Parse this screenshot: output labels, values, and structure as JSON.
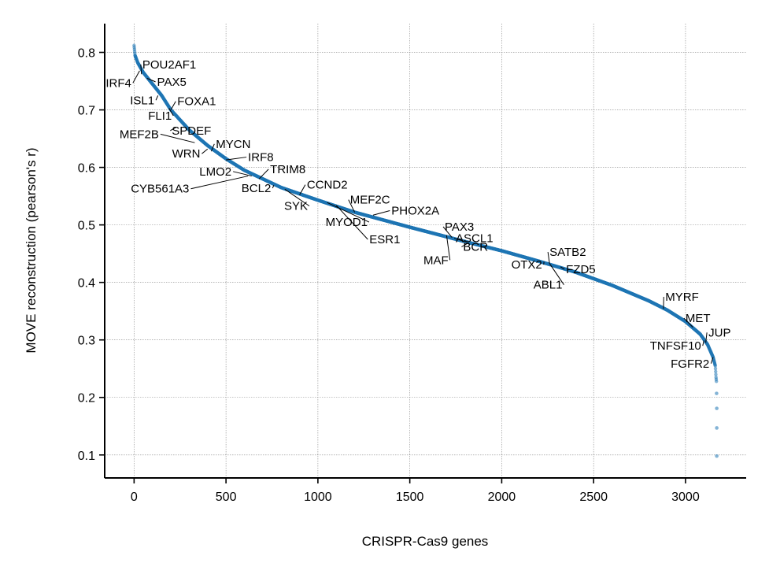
{
  "chart_data": {
    "type": "scatter",
    "title": "",
    "xlabel": "CRISPR-Cas9 genes",
    "ylabel": "MOVE reconstruction (pearson's r)",
    "xlim": [
      -160,
      3330
    ],
    "ylim": [
      0.06,
      0.85
    ],
    "xticks": [
      0,
      500,
      1000,
      1500,
      2000,
      2500,
      3000
    ],
    "yticks": [
      0.1,
      0.2,
      0.3,
      0.4,
      0.5,
      0.6,
      0.7,
      0.8
    ],
    "grid": true,
    "point_color": "#1f77b4",
    "n_points": 3170,
    "curve_anchors": [
      {
        "x": 0,
        "y": 0.812
      },
      {
        "x": 5,
        "y": 0.795
      },
      {
        "x": 20,
        "y": 0.782
      },
      {
        "x": 50,
        "y": 0.765
      },
      {
        "x": 100,
        "y": 0.745
      },
      {
        "x": 150,
        "y": 0.725
      },
      {
        "x": 200,
        "y": 0.7
      },
      {
        "x": 300,
        "y": 0.665
      },
      {
        "x": 400,
        "y": 0.638
      },
      {
        "x": 500,
        "y": 0.615
      },
      {
        "x": 600,
        "y": 0.595
      },
      {
        "x": 700,
        "y": 0.58
      },
      {
        "x": 800,
        "y": 0.565
      },
      {
        "x": 1000,
        "y": 0.543
      },
      {
        "x": 1200,
        "y": 0.522
      },
      {
        "x": 1500,
        "y": 0.496
      },
      {
        "x": 1800,
        "y": 0.471
      },
      {
        "x": 2000,
        "y": 0.455
      },
      {
        "x": 2200,
        "y": 0.437
      },
      {
        "x": 2400,
        "y": 0.418
      },
      {
        "x": 2600,
        "y": 0.395
      },
      {
        "x": 2800,
        "y": 0.368
      },
      {
        "x": 2900,
        "y": 0.352
      },
      {
        "x": 3000,
        "y": 0.332
      },
      {
        "x": 3080,
        "y": 0.31
      },
      {
        "x": 3120,
        "y": 0.292
      },
      {
        "x": 3150,
        "y": 0.27
      },
      {
        "x": 3162,
        "y": 0.255
      },
      {
        "x": 3166,
        "y": 0.235
      },
      {
        "x": 3168,
        "y": 0.228
      }
    ],
    "outliers": [
      {
        "x": 3169,
        "y": 0.207
      },
      {
        "x": 3170,
        "y": 0.181
      },
      {
        "x": 3170,
        "y": 0.147
      },
      {
        "x": 3170,
        "y": 0.098
      }
    ],
    "annotations": [
      {
        "label": "POU2AF1",
        "x": 40,
        "y": 0.762,
        "tx": 45,
        "ty": 0.772,
        "anchor": "start"
      },
      {
        "label": "IRF4",
        "x": 30,
        "y": 0.768,
        "tx": -15,
        "ty": 0.74,
        "anchor": "end"
      },
      {
        "label": "PAX5",
        "x": 70,
        "y": 0.755,
        "tx": 125,
        "ty": 0.742,
        "anchor": "start"
      },
      {
        "label": "ISL1",
        "x": 130,
        "y": 0.725,
        "tx": 110,
        "ty": 0.71,
        "anchor": "end"
      },
      {
        "label": "FOXA1",
        "x": 200,
        "y": 0.7,
        "tx": 235,
        "ty": 0.708,
        "anchor": "start"
      },
      {
        "label": "FLI1",
        "x": 190,
        "y": 0.703,
        "tx": 205,
        "ty": 0.683,
        "anchor": "end"
      },
      {
        "label": "SPDEF",
        "x": 230,
        "y": 0.67,
        "tx": 205,
        "ty": 0.657,
        "anchor": "start"
      },
      {
        "label": "MEF2B",
        "x": 330,
        "y": 0.643,
        "tx": 135,
        "ty": 0.651,
        "anchor": "end"
      },
      {
        "label": "MYCN",
        "x": 420,
        "y": 0.628,
        "tx": 445,
        "ty": 0.634,
        "anchor": "start"
      },
      {
        "label": "WRN",
        "x": 400,
        "y": 0.632,
        "tx": 360,
        "ty": 0.617,
        "anchor": "end"
      },
      {
        "label": "IRF8",
        "x": 500,
        "y": 0.613,
        "tx": 620,
        "ty": 0.611,
        "anchor": "start"
      },
      {
        "label": "LMO2",
        "x": 640,
        "y": 0.585,
        "tx": 530,
        "ty": 0.586,
        "anchor": "end"
      },
      {
        "label": "TRIM8",
        "x": 680,
        "y": 0.58,
        "tx": 740,
        "ty": 0.59,
        "anchor": "start"
      },
      {
        "label": "CYB561A3",
        "x": 620,
        "y": 0.585,
        "tx": 300,
        "ty": 0.556,
        "anchor": "end"
      },
      {
        "label": "BCL2",
        "x": 760,
        "y": 0.569,
        "tx": 745,
        "ty": 0.557,
        "anchor": "end"
      },
      {
        "label": "CCND2",
        "x": 900,
        "y": 0.552,
        "tx": 940,
        "ty": 0.563,
        "anchor": "start"
      },
      {
        "label": "SYK",
        "x": 820,
        "y": 0.562,
        "tx": 945,
        "ty": 0.526,
        "anchor": "end"
      },
      {
        "label": "MEF2C",
        "x": 1200,
        "y": 0.522,
        "tx": 1175,
        "ty": 0.537,
        "anchor": "start"
      },
      {
        "label": "PHOX2A",
        "x": 1300,
        "y": 0.517,
        "tx": 1400,
        "ty": 0.518,
        "anchor": "start"
      },
      {
        "label": "MYOD1",
        "x": 1050,
        "y": 0.539,
        "tx": 1270,
        "ty": 0.498,
        "anchor": "end"
      },
      {
        "label": "ESR1",
        "x": 1100,
        "y": 0.534,
        "tx": 1280,
        "ty": 0.468,
        "anchor": "start"
      },
      {
        "label": "PAX3",
        "x": 1730,
        "y": 0.478,
        "tx": 1690,
        "ty": 0.49,
        "anchor": "start"
      },
      {
        "label": "ASCL1",
        "x": 1800,
        "y": 0.471,
        "tx": 1750,
        "ty": 0.47,
        "anchor": "start"
      },
      {
        "label": "BCR",
        "x": 1820,
        "y": 0.469,
        "tx": 1790,
        "ty": 0.455,
        "anchor": "start"
      },
      {
        "label": "MAF",
        "x": 1700,
        "y": 0.482,
        "tx": 1710,
        "ty": 0.432,
        "anchor": "end"
      },
      {
        "label": "SATB2",
        "x": 2260,
        "y": 0.433,
        "tx": 2260,
        "ty": 0.446,
        "anchor": "start"
      },
      {
        "label": "OTX2",
        "x": 2230,
        "y": 0.436,
        "tx": 2220,
        "ty": 0.424,
        "anchor": "end"
      },
      {
        "label": "FZD5",
        "x": 2320,
        "y": 0.427,
        "tx": 2350,
        "ty": 0.416,
        "anchor": "start"
      },
      {
        "label": "ABL1",
        "x": 2260,
        "y": 0.433,
        "tx": 2330,
        "ty": 0.389,
        "anchor": "end"
      },
      {
        "label": "MYRF",
        "x": 2880,
        "y": 0.354,
        "tx": 2890,
        "ty": 0.368,
        "anchor": "start"
      },
      {
        "label": "MET",
        "x": 3040,
        "y": 0.322,
        "tx": 3000,
        "ty": 0.331,
        "anchor": "start"
      },
      {
        "label": "JUP",
        "x": 3110,
        "y": 0.295,
        "tx": 3125,
        "ty": 0.306,
        "anchor": "start"
      },
      {
        "label": "TNFSF10",
        "x": 3100,
        "y": 0.299,
        "tx": 3085,
        "ty": 0.283,
        "anchor": "end"
      },
      {
        "label": "FGFR2",
        "x": 3150,
        "y": 0.27,
        "tx": 3130,
        "ty": 0.252,
        "anchor": "end"
      }
    ]
  }
}
